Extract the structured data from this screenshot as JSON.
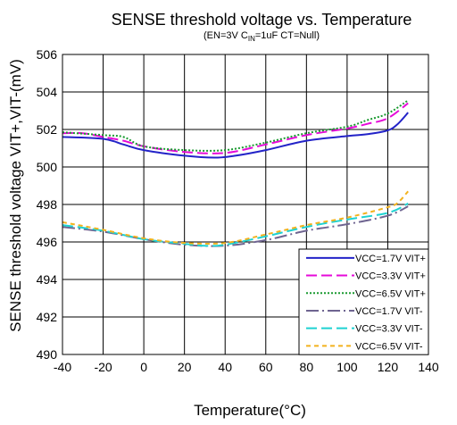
{
  "chart_data": {
    "type": "line",
    "title": "SENSE  threshold voltage  vs. Temperature",
    "subtitle": {
      "part1": "(EN=3V  C",
      "sub": "IN",
      "part2": "=1uF CT=Null)"
    },
    "xlabel": "Temperature(°C)",
    "ylabel": "SENSE  threshold voltage VIT+,VIT-(mV)",
    "xlim": [
      -40,
      140
    ],
    "ylim": [
      490,
      506
    ],
    "xticks": [
      -40,
      -20,
      0,
      20,
      40,
      60,
      80,
      100,
      120,
      140
    ],
    "yticks": [
      490,
      492,
      494,
      496,
      498,
      500,
      502,
      504,
      506
    ],
    "grid": true,
    "legend_position": "bottom-right",
    "series": [
      {
        "name": "VCC=1.7V VIT+",
        "color": "#2323c8",
        "dash": "solid",
        "x": [
          -40,
          -20,
          -10,
          0,
          20,
          35,
          45,
          60,
          80,
          100,
          110,
          120,
          125,
          130
        ],
        "y": [
          501.6,
          501.5,
          501.2,
          500.9,
          500.6,
          500.5,
          500.6,
          500.9,
          501.4,
          501.65,
          501.75,
          501.95,
          502.3,
          502.9
        ]
      },
      {
        "name": "VCC=3.3V VIT+",
        "color": "#e60ad8",
        "dash": "12,5",
        "x": [
          -40,
          -30,
          -20,
          -10,
          0,
          20,
          40,
          60,
          80,
          100,
          110,
          120,
          130
        ],
        "y": [
          501.8,
          501.8,
          501.6,
          501.4,
          501.1,
          500.8,
          500.75,
          501.2,
          501.7,
          502.05,
          502.3,
          502.6,
          503.4
        ]
      },
      {
        "name": "VCC=6.5V VIT+",
        "color": "#1a9a30",
        "dash": "2,2",
        "x": [
          -40,
          -20,
          -10,
          0,
          20,
          40,
          60,
          80,
          100,
          110,
          120,
          130
        ],
        "y": [
          501.85,
          501.7,
          501.6,
          501.1,
          500.9,
          500.9,
          501.3,
          501.8,
          502.15,
          502.5,
          502.85,
          503.55
        ]
      },
      {
        "name": "VCC=1.7V VIT-",
        "color": "#6e6490",
        "dash": "14,4,2,4",
        "x": [
          -40,
          -20,
          0,
          20,
          40,
          60,
          80,
          100,
          120,
          130
        ],
        "y": [
          496.8,
          496.55,
          496.15,
          495.85,
          495.8,
          496.1,
          496.6,
          496.95,
          497.4,
          497.9
        ]
      },
      {
        "name": "VCC=3.3V VIT-",
        "color": "#1ed2d2",
        "dash": "12,5",
        "x": [
          -40,
          -20,
          0,
          20,
          30,
          40,
          60,
          80,
          100,
          120,
          130
        ],
        "y": [
          496.9,
          496.6,
          496.15,
          495.9,
          495.8,
          495.85,
          496.3,
          496.8,
          497.2,
          497.55,
          498.05
        ]
      },
      {
        "name": "VCC=6.5V VIT-",
        "color": "#f2b21e",
        "dash": "5,4",
        "x": [
          -40,
          -20,
          0,
          20,
          40,
          60,
          80,
          100,
          120,
          125,
          130
        ],
        "y": [
          497.05,
          496.65,
          496.2,
          495.95,
          495.95,
          496.4,
          496.9,
          497.3,
          497.85,
          498.1,
          498.7
        ]
      }
    ]
  }
}
